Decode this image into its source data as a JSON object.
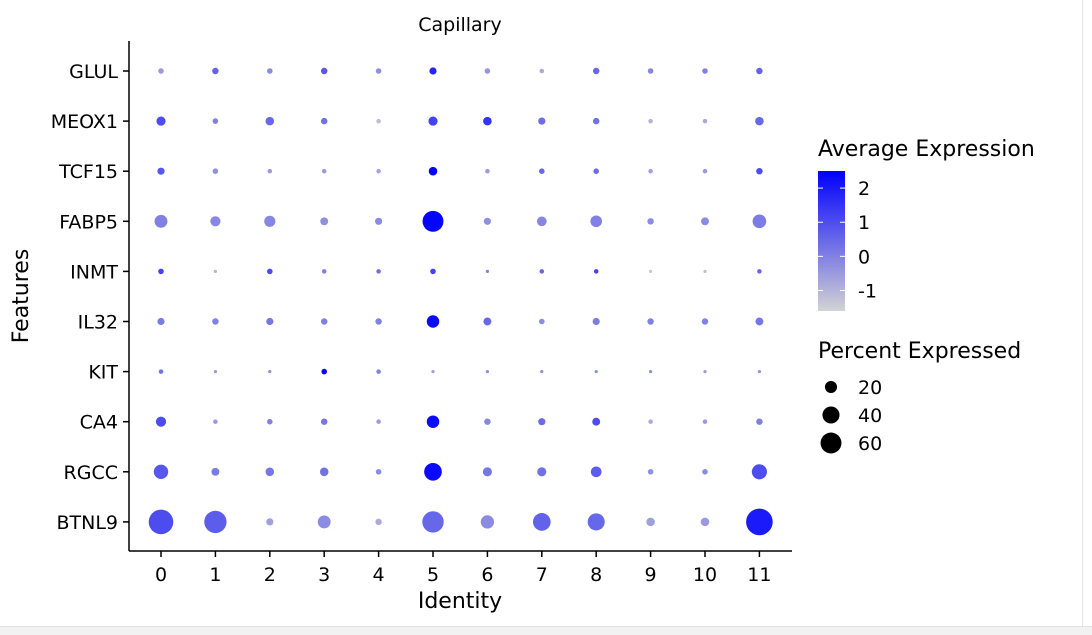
{
  "chart_data": {
    "type": "dot",
    "title": "Capillary",
    "xlabel": "Identity",
    "ylabel": "Features",
    "categories": [
      "0",
      "1",
      "2",
      "3",
      "4",
      "5",
      "6",
      "7",
      "8",
      "9",
      "10",
      "11"
    ],
    "features": [
      "GLUL",
      "MEOX1",
      "TCF15",
      "FABP5",
      "INMT",
      "IL32",
      "KIT",
      "CA4",
      "RGCC",
      "BTNL9"
    ],
    "color_legend": {
      "title": "Average Expression",
      "ticks": [
        "2",
        "1",
        "0",
        "-1"
      ],
      "tick_values": [
        2,
        1,
        0,
        -1
      ],
      "range": [
        -1.6,
        2.5
      ],
      "low_color": "#d3d3d3",
      "high_color": "#0000ff"
    },
    "size_legend": {
      "title": "Percent Expressed",
      "ticks": [
        "20",
        "40",
        "60"
      ],
      "tick_values": [
        20,
        40,
        60
      ]
    },
    "points": {
      "GLUL": {
        "pct": [
          3,
          4,
          3,
          4,
          3,
          5,
          3,
          2,
          4,
          3,
          3,
          4
        ],
        "avg": [
          -0.5,
          0.6,
          -0.2,
          0.8,
          -0.3,
          1.8,
          -0.4,
          -0.8,
          0.5,
          -0.1,
          0,
          0.6
        ]
      },
      "MEOX1": {
        "pct": [
          8,
          3,
          7,
          4,
          2,
          8,
          7,
          5,
          4,
          2,
          2,
          7
        ],
        "avg": [
          1.0,
          0,
          0.5,
          0.3,
          -1.2,
          1.2,
          1.5,
          0.4,
          0.3,
          -1.0,
          -0.8,
          0.5
        ]
      },
      "TCF15": {
        "pct": [
          5,
          3,
          2,
          2,
          2,
          7,
          2,
          3,
          3,
          2,
          2,
          4
        ],
        "avg": [
          0.8,
          -0.3,
          -0.5,
          -0.5,
          -0.7,
          2.4,
          -0.5,
          0.5,
          0.4,
          -0.6,
          -0.5,
          1.0
        ]
      },
      "FABP5": {
        "pct": [
          16,
          10,
          12,
          6,
          5,
          42,
          5,
          9,
          13,
          4,
          6,
          18
        ],
        "avg": [
          0,
          -0.1,
          -0.1,
          -0.3,
          -0.2,
          2.4,
          -0.3,
          -0.1,
          0,
          -0.2,
          -0.2,
          0.1
        ]
      },
      "INMT": {
        "pct": [
          3,
          1,
          3,
          2,
          2,
          3,
          1,
          2,
          2,
          1,
          1,
          2
        ],
        "avg": [
          1.2,
          -1.0,
          1.0,
          0,
          0.3,
          1.2,
          0,
          0.5,
          1.2,
          -1.4,
          -1.2,
          0.5
        ]
      },
      "IL32": {
        "pct": [
          5,
          4,
          5,
          4,
          4,
          15,
          6,
          3,
          5,
          4,
          4,
          6
        ],
        "avg": [
          0.1,
          0,
          0.2,
          0,
          0,
          2.3,
          0.5,
          -0.2,
          0.1,
          0,
          0,
          0.2
        ]
      },
      "KIT": {
        "pct": [
          2,
          1,
          1,
          3,
          2,
          1,
          1,
          1,
          1,
          1,
          1,
          1
        ],
        "avg": [
          0.3,
          -0.5,
          -0.3,
          2.4,
          0,
          -0.6,
          -0.3,
          -0.3,
          -0.3,
          -0.3,
          -0.5,
          -0.4
        ]
      },
      "CA4": {
        "pct": [
          10,
          2,
          3,
          4,
          2,
          15,
          4,
          5,
          6,
          2,
          2,
          4
        ],
        "avg": [
          1.0,
          -0.5,
          0,
          0.2,
          -0.5,
          2.3,
          -0.1,
          0.4,
          1.0,
          -0.8,
          -0.5,
          0
        ]
      },
      "RGCC": {
        "pct": [
          20,
          6,
          7,
          7,
          3,
          30,
          8,
          8,
          11,
          3,
          3,
          22
        ],
        "avg": [
          0.8,
          0.1,
          0.2,
          0.3,
          -0.2,
          2.3,
          0.2,
          0.3,
          0.7,
          -0.3,
          -0.2,
          1.0
        ]
      },
      "BTNL9": {
        "pct": [
          58,
          48,
          5,
          16,
          4,
          44,
          17,
          30,
          28,
          7,
          7,
          68
        ],
        "avg": [
          1.0,
          0.7,
          -0.6,
          -0.2,
          -0.8,
          0.5,
          -0.2,
          0.6,
          0.5,
          -0.6,
          -0.5,
          2.0
        ]
      }
    }
  }
}
